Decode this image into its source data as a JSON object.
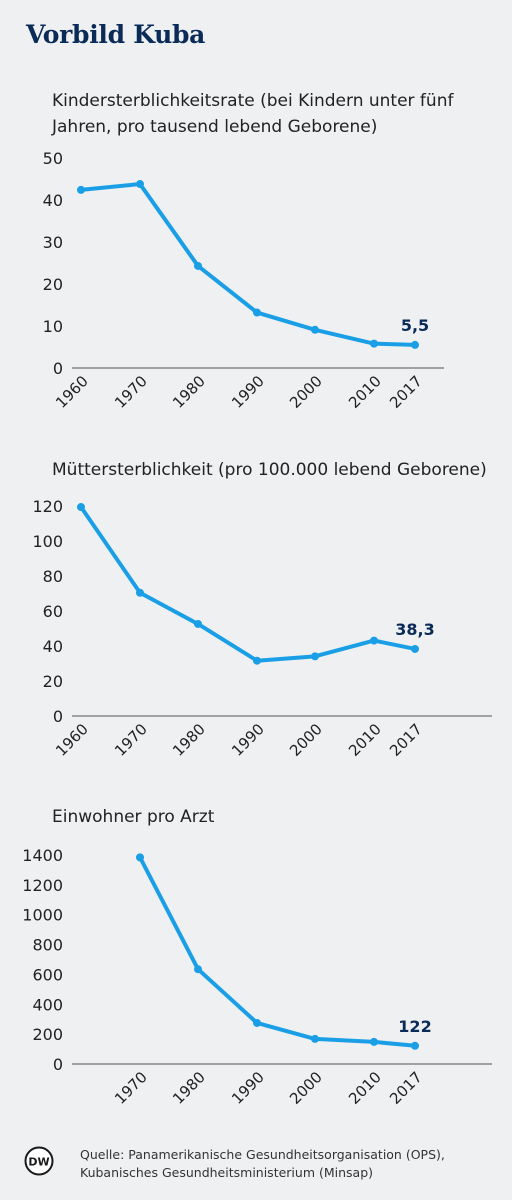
{
  "title": "Vorbild Kuba",
  "source": {
    "line1": "Quelle: Panamerikanische Gesundheitsorganisation (OPS),",
    "line2": "Kubanisches Gesundheitsministerium (Minsap)"
  },
  "logo_text": "DW",
  "colors": {
    "line": "#1a9fe6",
    "title": "#0a2a57",
    "label": "#0a2a57",
    "background": "#eef0f2"
  },
  "chart_data": [
    {
      "type": "line",
      "title": "Kindersterblichkeitsrate (bei Kindern unter fünf Jahren, pro tausend lebend Geborene)",
      "categories": [
        "1960",
        "1970",
        "1980",
        "1990",
        "2000",
        "2010",
        "2017"
      ],
      "values": [
        42.4,
        43.8,
        24.3,
        13.2,
        9.1,
        5.8,
        5.5
      ],
      "yticks": [
        0,
        10,
        20,
        30,
        40,
        50
      ],
      "ylim": [
        0,
        50
      ],
      "labels": [
        {
          "index": 6,
          "text": "5,5"
        }
      ]
    },
    {
      "type": "line",
      "title": "Müttersterblichkeit (pro 100.000 lebend Geborene)",
      "categories": [
        "1960",
        "1970",
        "1980",
        "1990",
        "2000",
        "2010",
        "2017"
      ],
      "values": [
        119.4,
        70.4,
        52.6,
        31.6,
        34.1,
        43.1,
        38.3
      ],
      "yticks": [
        0,
        20,
        40,
        60,
        80,
        100,
        120
      ],
      "ylim": [
        0,
        120
      ],
      "labels": [
        {
          "index": 6,
          "text": "38,3"
        }
      ]
    },
    {
      "type": "line",
      "title": "Einwohner pro Arzt",
      "categories": [
        "1970",
        "1980",
        "1990",
        "2000",
        "2010",
        "2017"
      ],
      "values": [
        1384,
        635,
        275,
        168,
        148,
        122
      ],
      "yticks": [
        0,
        200,
        400,
        600,
        800,
        1000,
        1200,
        1400
      ],
      "ylim": [
        0,
        1400
      ],
      "labels": [
        {
          "index": 5,
          "text": "122"
        }
      ]
    }
  ]
}
